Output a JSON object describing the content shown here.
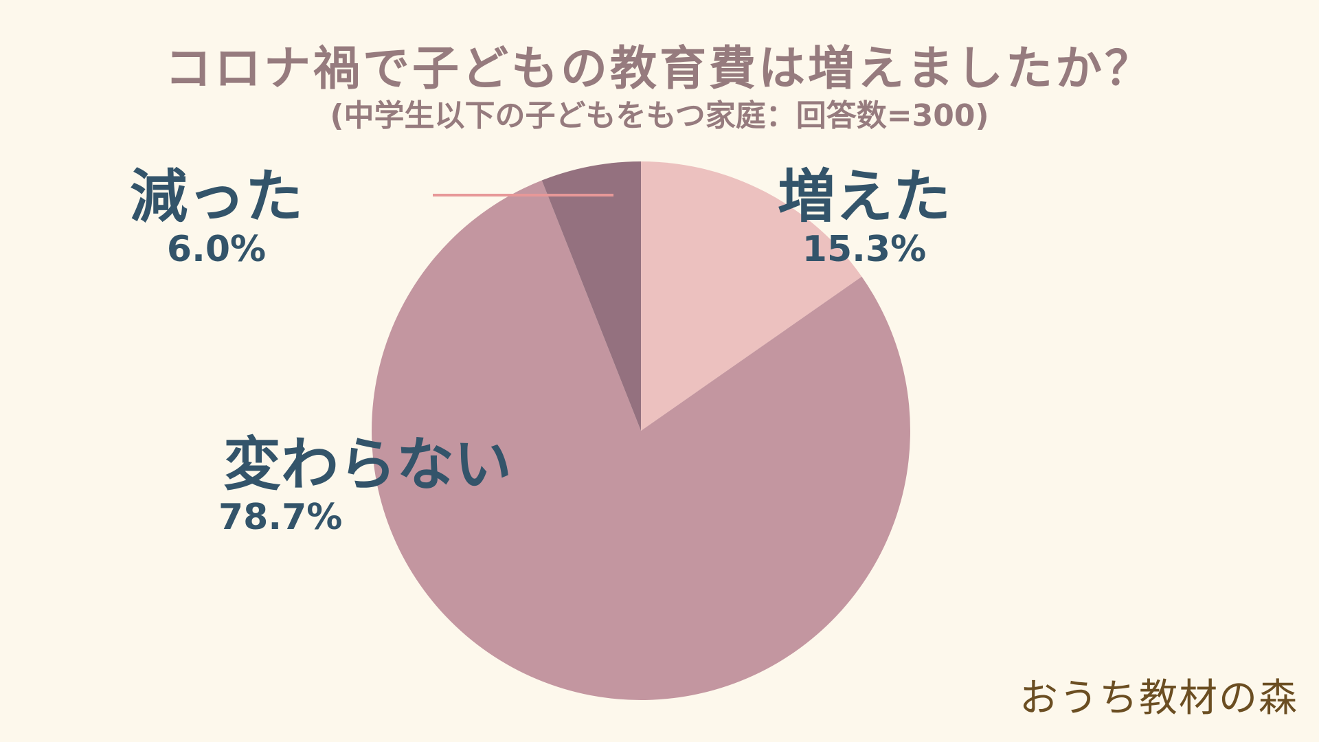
{
  "chart_data": {
    "type": "pie",
    "title": "コロナ禍で子どもの教育費は増えましたか？",
    "subtitle": "(中学生以下の子どもをもつ家庭：回答数=300)",
    "slices": [
      {
        "label": "増えた",
        "value": 15.3,
        "display": "15.3%",
        "color": "#ecc1bf"
      },
      {
        "label": "変わらない",
        "value": 78.7,
        "display": "78.7%",
        "color": "#c396a0"
      },
      {
        "label": "減った",
        "value": 6.0,
        "display": "6.0%",
        "color": "#94717f"
      }
    ],
    "leader_line_color": "#e79898"
  },
  "brand": {
    "logo_text": "おうち教材の森"
  }
}
